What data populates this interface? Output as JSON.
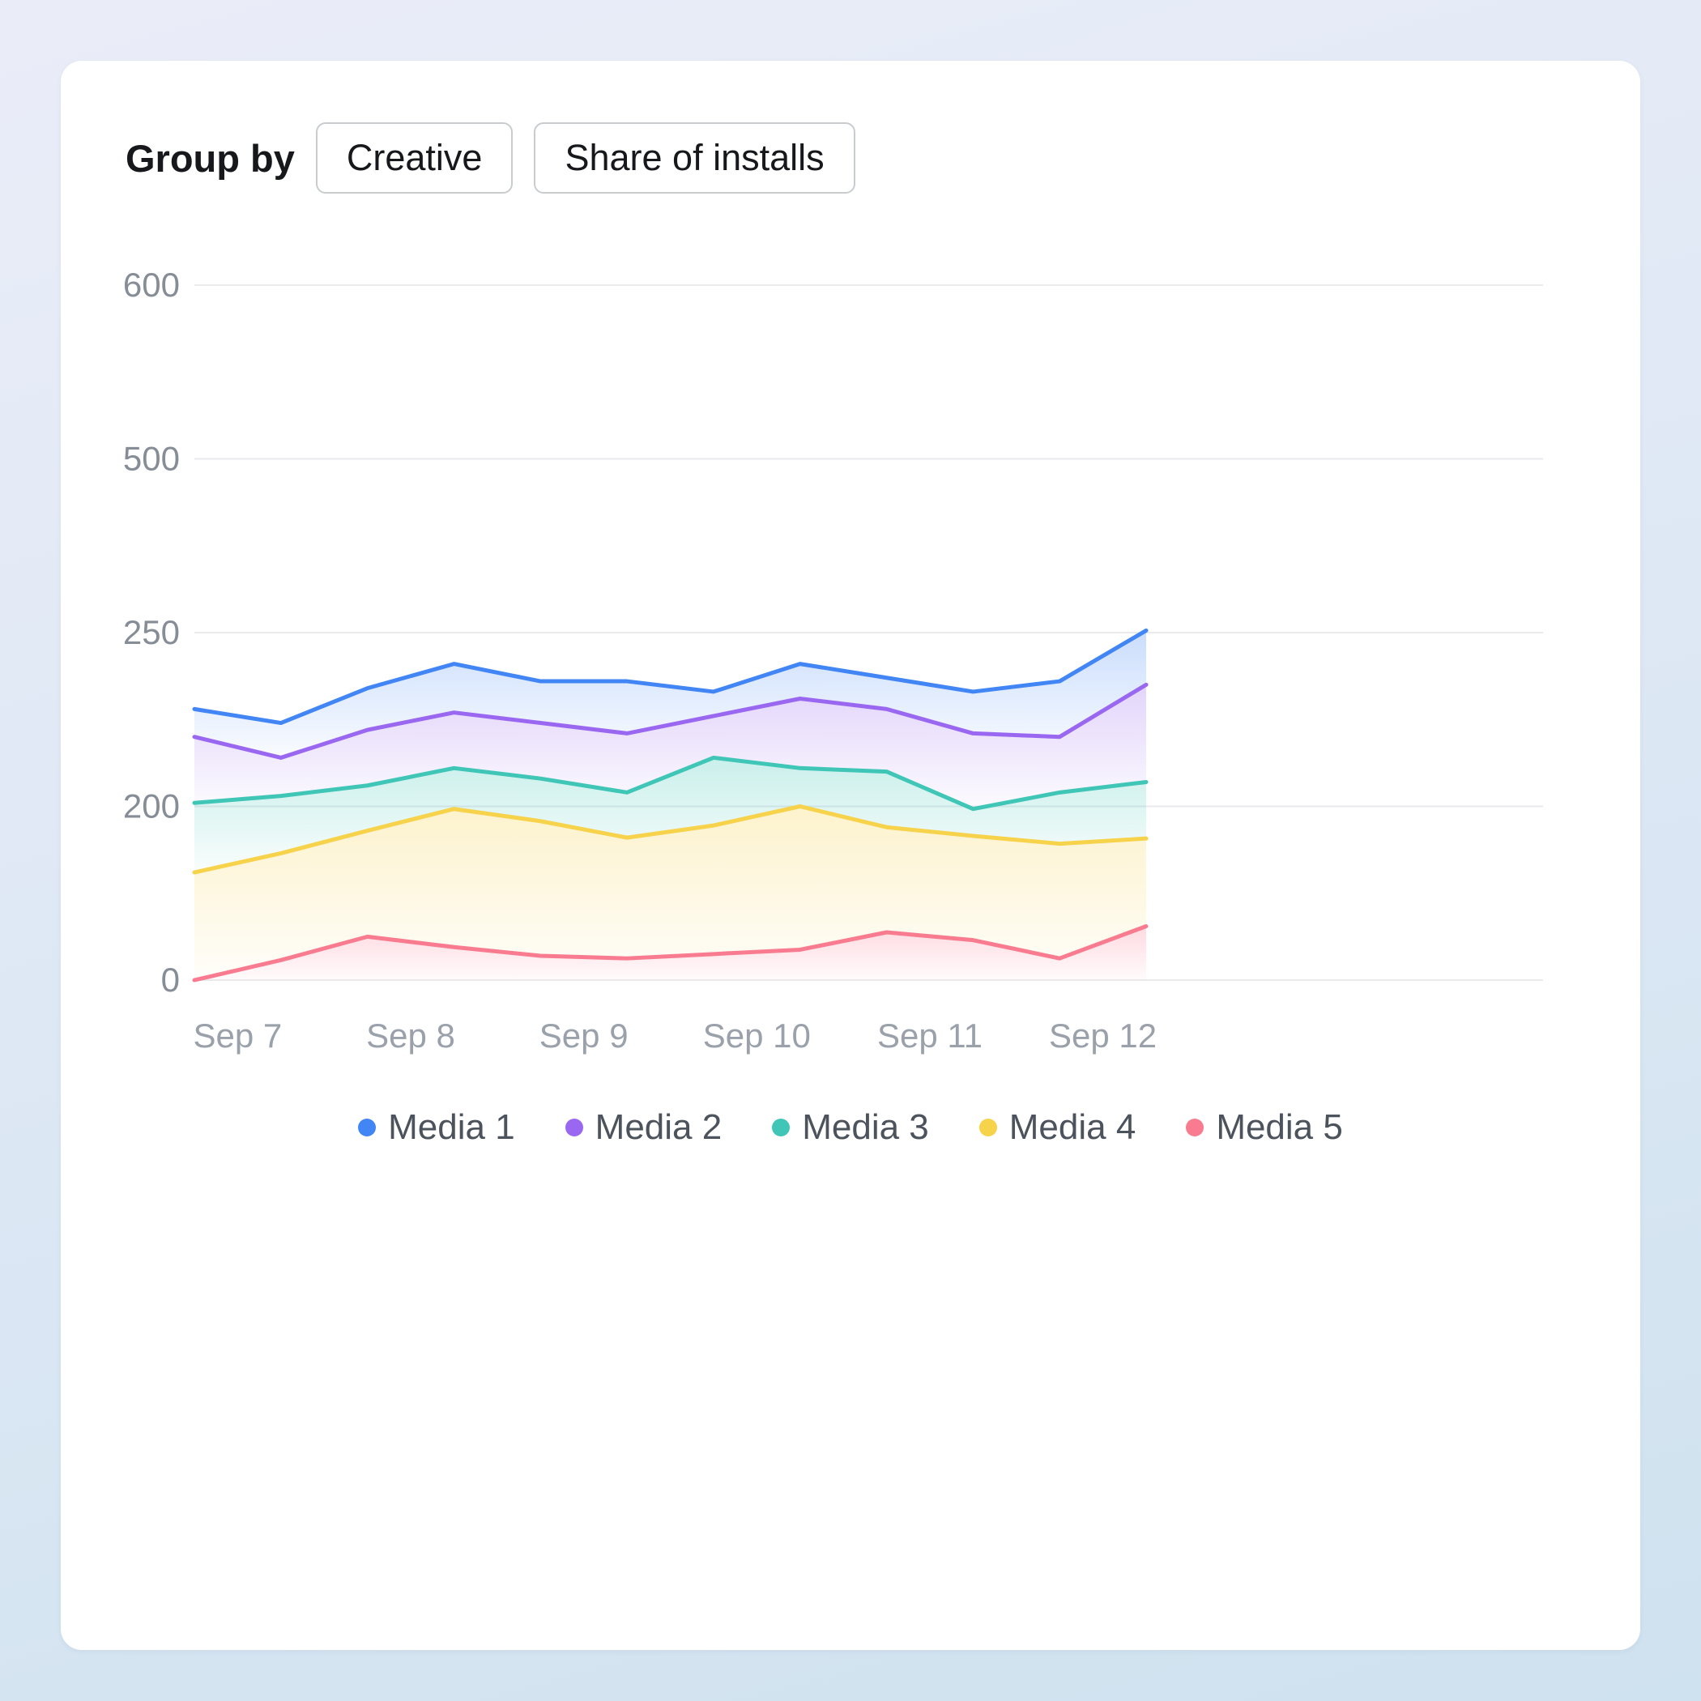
{
  "controls": {
    "group_by_label": "Group by",
    "buttons": [
      {
        "label": "Creative"
      },
      {
        "label": "Share of installs"
      }
    ]
  },
  "chart_data": {
    "type": "area",
    "title": "",
    "xlabel": "",
    "ylabel": "",
    "grid": true,
    "legend_position": "bottom",
    "x_labels": [
      "Sep 7",
      "Sep 8",
      "Sep 9",
      "Sep 10",
      "Sep 11",
      "Sep 12"
    ],
    "points_per_label": 2,
    "y_ticks": [
      0,
      200,
      250,
      500,
      600
    ],
    "y_tick_labels": [
      "0",
      "200",
      "250",
      "500",
      "600"
    ],
    "series": [
      {
        "name": "Media 1",
        "color": "#4285f4",
        "values": [
          228,
          224,
          234,
          241,
          236,
          236,
          233,
          241,
          237,
          233,
          236,
          253
        ]
      },
      {
        "name": "Media 2",
        "color": "#9a68f0",
        "values": [
          220,
          214,
          222,
          227,
          224,
          221,
          226,
          231,
          228,
          221,
          220,
          235
        ]
      },
      {
        "name": "Media 3",
        "color": "#3fc6b7",
        "values": [
          201,
          203,
          206,
          211,
          208,
          204,
          214,
          211,
          210,
          197,
          204,
          207
        ]
      },
      {
        "name": "Media 4",
        "color": "#f7d24b",
        "values": [
          124,
          146,
          172,
          197,
          183,
          164,
          178,
          200,
          176,
          166,
          157,
          163
        ]
      },
      {
        "name": "Media 5",
        "color": "#f97b90",
        "values": [
          0,
          23,
          50,
          38,
          28,
          25,
          30,
          35,
          55,
          46,
          25,
          62
        ]
      }
    ]
  }
}
